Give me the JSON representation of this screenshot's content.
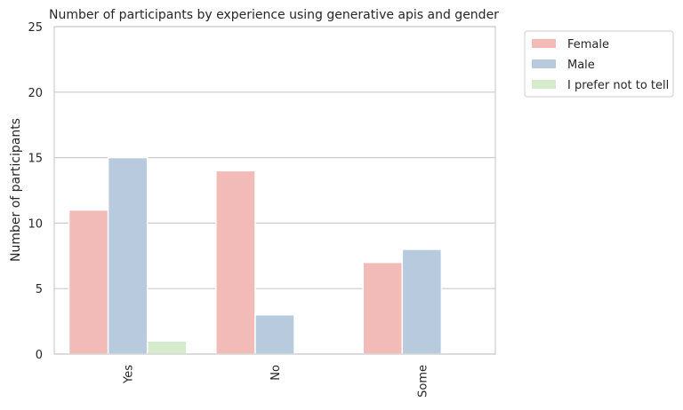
{
  "chart_data": {
    "type": "bar",
    "title": "Number of participants by experience using generative apis and gender",
    "xlabel": "",
    "ylabel": "Number of participants",
    "categories": [
      "Yes",
      "No",
      "Some"
    ],
    "series": [
      {
        "name": "Female",
        "values": [
          11,
          14,
          7
        ],
        "color": "#f2bbb8"
      },
      {
        "name": "Male",
        "values": [
          15,
          3,
          8
        ],
        "color": "#b8cbde"
      },
      {
        "name": "I prefer not to tell",
        "values": [
          1,
          0,
          0
        ],
        "color": "#d4ebcc"
      }
    ],
    "ylim": [
      0,
      25
    ],
    "yticks": [
      0,
      5,
      10,
      15,
      20,
      25
    ],
    "grid": "horizontal",
    "legend_position": "outside-top-right"
  }
}
